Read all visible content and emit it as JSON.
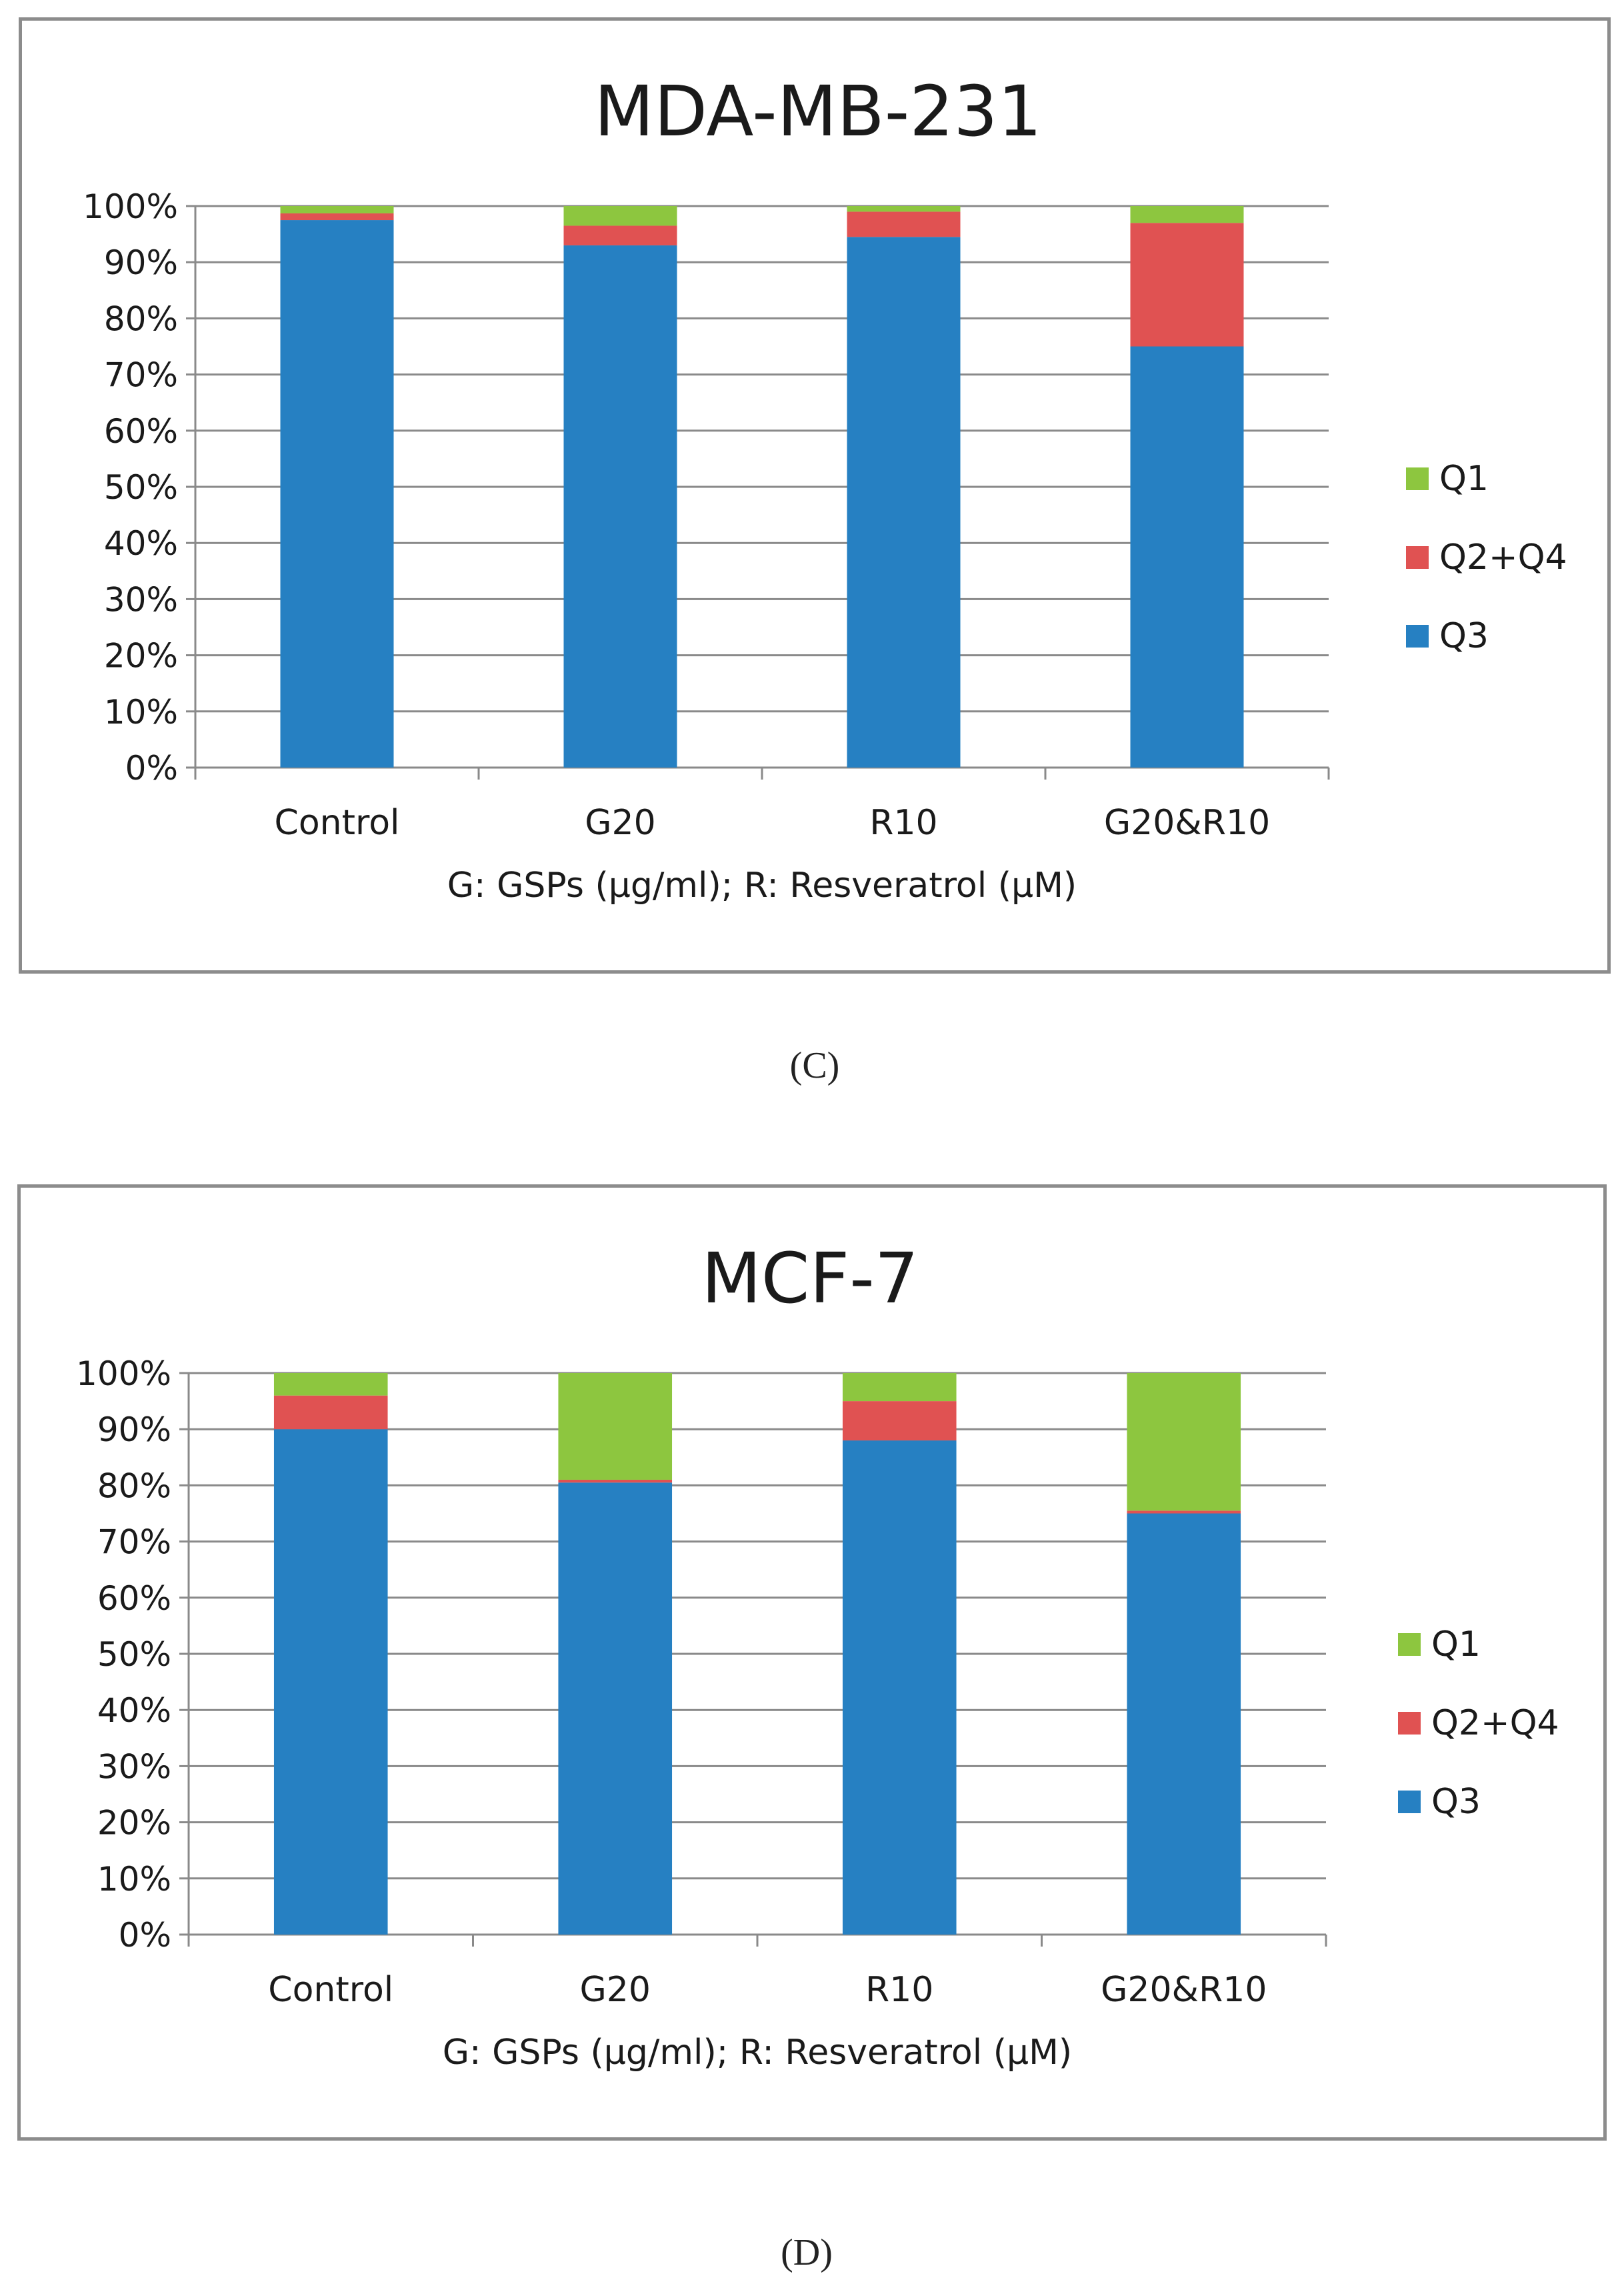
{
  "colors": {
    "q1": "#8dc63f",
    "q24": "#e05252",
    "q3": "#2680c2",
    "grid": "#8a8a8a",
    "text": "#1a1a1a"
  },
  "captions": {
    "c": "(C)",
    "d": "(D)"
  },
  "chart_data": [
    {
      "type": "bar",
      "stacked": true,
      "title": "MDA-MB-231",
      "xlabel": "G: GSPs (μg/ml); R: Resveratrol  (μM)",
      "ylabel": "",
      "categories": [
        "Control",
        "G20",
        "R10",
        "G20&R10"
      ],
      "yticks": [
        "0%",
        "10%",
        "20%",
        "30%",
        "40%",
        "50%",
        "60%",
        "70%",
        "80%",
        "90%",
        "100%"
      ],
      "ylim": [
        0,
        100
      ],
      "grid": true,
      "legend_position": "right",
      "series": [
        {
          "name": "Q3",
          "values": [
            97.5,
            93,
            94.5,
            75
          ]
        },
        {
          "name": "Q2+Q4",
          "values": [
            1.2,
            3.5,
            4.5,
            22
          ]
        },
        {
          "name": "Q1",
          "values": [
            1.3,
            3.5,
            1,
            3
          ]
        }
      ],
      "legend": [
        "Q1",
        "Q2+Q4",
        "Q3"
      ]
    },
    {
      "type": "bar",
      "stacked": true,
      "title": "MCF-7",
      "xlabel": "G: GSPs (μg/ml); R: Resveratrol  (μM)",
      "ylabel": "",
      "categories": [
        "Control",
        "G20",
        "R10",
        "G20&R10"
      ],
      "yticks": [
        "0%",
        "10%",
        "20%",
        "30%",
        "40%",
        "50%",
        "60%",
        "70%",
        "80%",
        "90%",
        "100%"
      ],
      "ylim": [
        0,
        100
      ],
      "grid": true,
      "legend_position": "right",
      "series": [
        {
          "name": "Q3",
          "values": [
            90,
            80.5,
            88,
            75
          ]
        },
        {
          "name": "Q2+Q4",
          "values": [
            6,
            0.5,
            7,
            0.5
          ]
        },
        {
          "name": "Q1",
          "values": [
            4,
            19,
            5,
            24.5
          ]
        }
      ],
      "legend": [
        "Q1",
        "Q2+Q4",
        "Q3"
      ]
    }
  ]
}
